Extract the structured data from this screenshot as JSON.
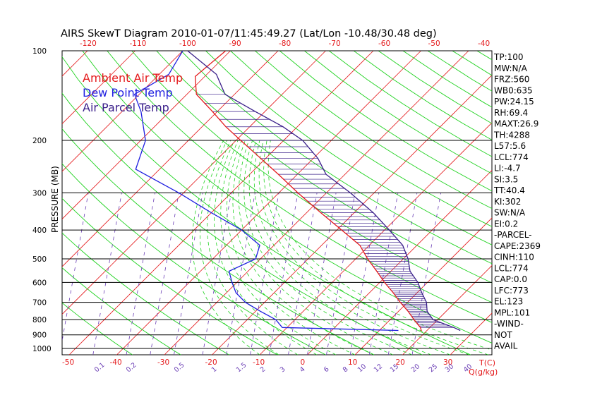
{
  "chart_data": {
    "type": "line",
    "title": "AIRS SkewT Diagram 2010-01-07/11:45:49.27 (Lat/Lon -10.48/30.48 deg)",
    "ylabel": "PRESSURE (MB)",
    "xlabel": "T(C)",
    "mixing_ratio_label": "Q(g/kg)",
    "log_pressure_axis": true,
    "pressure_ticks": [
      100,
      200,
      300,
      400,
      500,
      600,
      700,
      800,
      900,
      1000
    ],
    "pressure_range": [
      100,
      1050
    ],
    "top_temp_ticks": [
      -120,
      -110,
      -100,
      -90,
      -80,
      -70,
      -60,
      -50,
      -40
    ],
    "bottom_temp_ticks": [
      -50,
      -40,
      -30,
      -20,
      -10,
      0,
      10,
      20,
      30
    ],
    "mixing_ratio_ticks": [
      "0.1",
      "0.2",
      "0.5",
      "1",
      "1.5",
      "2",
      "3",
      "4",
      "6",
      "8",
      "10",
      "12",
      "15",
      "20",
      "25",
      "30",
      "40"
    ],
    "legend": [
      {
        "name": "Ambient Air Temp",
        "color": "#e41a1c"
      },
      {
        "name": "Dew Point Temp",
        "color": "#1f1fe0"
      },
      {
        "name": "Air Parcel Temp",
        "color": "#3a1f8a"
      }
    ],
    "series": [
      {
        "name": "Ambient Air Temp",
        "color": "#e41a1c",
        "points": [
          [
            100,
            -81
          ],
          [
            122,
            -82
          ],
          [
            140,
            -78
          ],
          [
            160,
            -71
          ],
          [
            180,
            -65
          ],
          [
            200,
            -59
          ],
          [
            230,
            -51
          ],
          [
            260,
            -44
          ],
          [
            300,
            -36
          ],
          [
            350,
            -27
          ],
          [
            400,
            -19
          ],
          [
            450,
            -12
          ],
          [
            500,
            -7.5
          ],
          [
            550,
            -3
          ],
          [
            600,
            1
          ],
          [
            650,
            5
          ],
          [
            700,
            8.5
          ],
          [
            750,
            12
          ],
          [
            800,
            15
          ],
          [
            850,
            18
          ],
          [
            875,
            19
          ]
        ]
      },
      {
        "name": "Dew Point Temp",
        "color": "#1f1fe0",
        "points": [
          [
            100,
            -90
          ],
          [
            120,
            -88
          ],
          [
            140,
            -91
          ],
          [
            160,
            -86
          ],
          [
            200,
            -79
          ],
          [
            250,
            -75
          ],
          [
            300,
            -61
          ],
          [
            350,
            -50
          ],
          [
            400,
            -40
          ],
          [
            450,
            -33
          ],
          [
            500,
            -31
          ],
          [
            550,
            -34
          ],
          [
            600,
            -31
          ],
          [
            650,
            -28
          ],
          [
            700,
            -24
          ],
          [
            750,
            -19
          ],
          [
            800,
            -14
          ],
          [
            850,
            -11
          ],
          [
            870,
            14
          ]
        ]
      },
      {
        "name": "Air Parcel Temp",
        "color": "#3a1f8a",
        "points": [
          [
            100,
            -89
          ],
          [
            120,
            -78
          ],
          [
            140,
            -72
          ],
          [
            160,
            -62
          ],
          [
            180,
            -53
          ],
          [
            200,
            -46
          ],
          [
            230,
            -39
          ],
          [
            260,
            -34
          ],
          [
            300,
            -25
          ],
          [
            350,
            -16
          ],
          [
            400,
            -9
          ],
          [
            450,
            -3
          ],
          [
            500,
            1
          ],
          [
            550,
            4
          ],
          [
            600,
            8
          ],
          [
            650,
            11
          ],
          [
            700,
            14
          ],
          [
            750,
            16
          ],
          [
            800,
            19
          ],
          [
            850,
            25
          ],
          [
            870,
            27
          ]
        ]
      }
    ],
    "indices": [
      "TP:100",
      "MW:N/A",
      "FRZ:560",
      "WB0:635",
      "PW:24.15",
      "RH:69.4",
      "MAXT:26.9",
      "TH:4288",
      "L57:5.6",
      "LCL:774",
      "LI:-4.7",
      "SI:3.5",
      "TT:40.4",
      "KI:302",
      "SW:N/A",
      "EI:0.2",
      "-PARCEL-",
      "CAPE:2369",
      "CINH:110",
      "LCL:774",
      "CAP:0.0",
      "LFC:773",
      "EL:123",
      "MPL:101",
      "-WIND-",
      "NOT",
      "AVAIL"
    ]
  }
}
